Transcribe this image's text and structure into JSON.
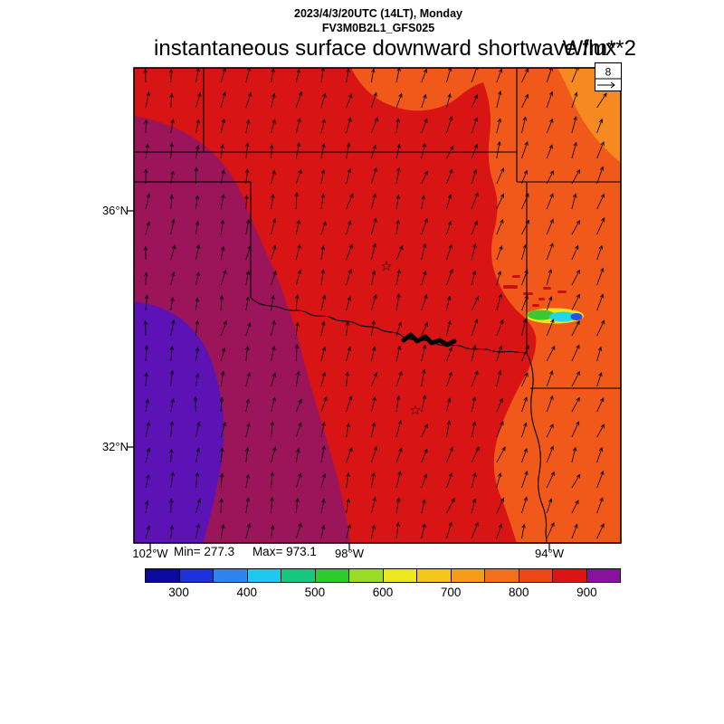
{
  "header": {
    "line1": "2023/4/3/20UTC (14LT), Monday",
    "line2": "FV3M0B2L1_GFS025",
    "title": "instantaneous surface downward shortwave flux",
    "units": "W/m**2"
  },
  "stats_text": {
    "min": "Min= 277.3",
    "max": "Max= 973.1"
  },
  "axis": {
    "lat": [
      "36°N",
      "32°N"
    ],
    "lon": [
      "102°W",
      "98°W",
      "94°W"
    ]
  },
  "ref_vector": {
    "label": "8"
  },
  "map_colors": {
    "red": "#d91414",
    "orange": "#f0591a",
    "light_orange": "#f68a20",
    "dark_magenta": "#9c155a",
    "purple": "#5c12b4",
    "cloud_yellow": "#f2e51e",
    "cloud_green": "#3bc832",
    "cloud_cyan": "#22d8e8",
    "cloud_blue": "#2353e6",
    "speckle_red": "#c81212",
    "boundary": "#000000"
  },
  "chart_data": {
    "type": "heatmap",
    "title": "instantaneous surface downward shortwave flux",
    "units": "W/m**2",
    "valid_time": "2023/4/3/20UTC (14LT), Monday",
    "model_run": "FV3M0B2L1_GFS025",
    "stats": {
      "min": 277.3,
      "max": 973.1
    },
    "axes": {
      "lat_tick_labels": [
        "36°N",
        "32°N"
      ],
      "lon_tick_labels": [
        "102°W",
        "98°W",
        "94°W"
      ],
      "lat_range_approx": [
        30.4,
        38.4
      ],
      "lon_range_approx": [
        -102.3,
        -92.6
      ]
    },
    "colorbar": {
      "levels": [
        300,
        350,
        400,
        450,
        500,
        550,
        600,
        650,
        700,
        750,
        800,
        850,
        900
      ],
      "tick_labels": [
        "300",
        "400",
        "500",
        "600",
        "700",
        "800",
        "900"
      ],
      "colors": [
        "#0a0aa0",
        "#1e32dc",
        "#2f85ef",
        "#1ec8f0",
        "#16c87d",
        "#2ecb2e",
        "#9bdc24",
        "#ece81d",
        "#f6c51c",
        "#f79b1b",
        "#f5701a",
        "#ee4615",
        "#dc1414",
        "#8a12a0"
      ]
    },
    "values_by_region": [
      {
        "range_w_m2": "900-973",
        "map_color": "purple / dark magenta",
        "location": "western third of domain (max 973.1)"
      },
      {
        "range_w_m2": "850-900",
        "map_color": "red",
        "location": "central domain (western Oklahoma, north Texas)"
      },
      {
        "range_w_m2": "750-850",
        "map_color": "orange",
        "location": "eastern third (eastern Oklahoma, Missouri, Arkansas)"
      },
      {
        "range_w_m2": "277-550",
        "map_color": "blue-cyan-green patch",
        "location": "small cloud-shaded spot in east-central area (min 277.3)"
      }
    ],
    "wind_overlay": {
      "type": "quiver",
      "reference_value": 8,
      "reference_label": "8",
      "description": "arrows pointing generally north to north-northeast (southerly flow) across the whole domain"
    },
    "map_overlays": [
      "state boundaries",
      "Red River with Lake Texoma",
      "two star city markers"
    ]
  }
}
